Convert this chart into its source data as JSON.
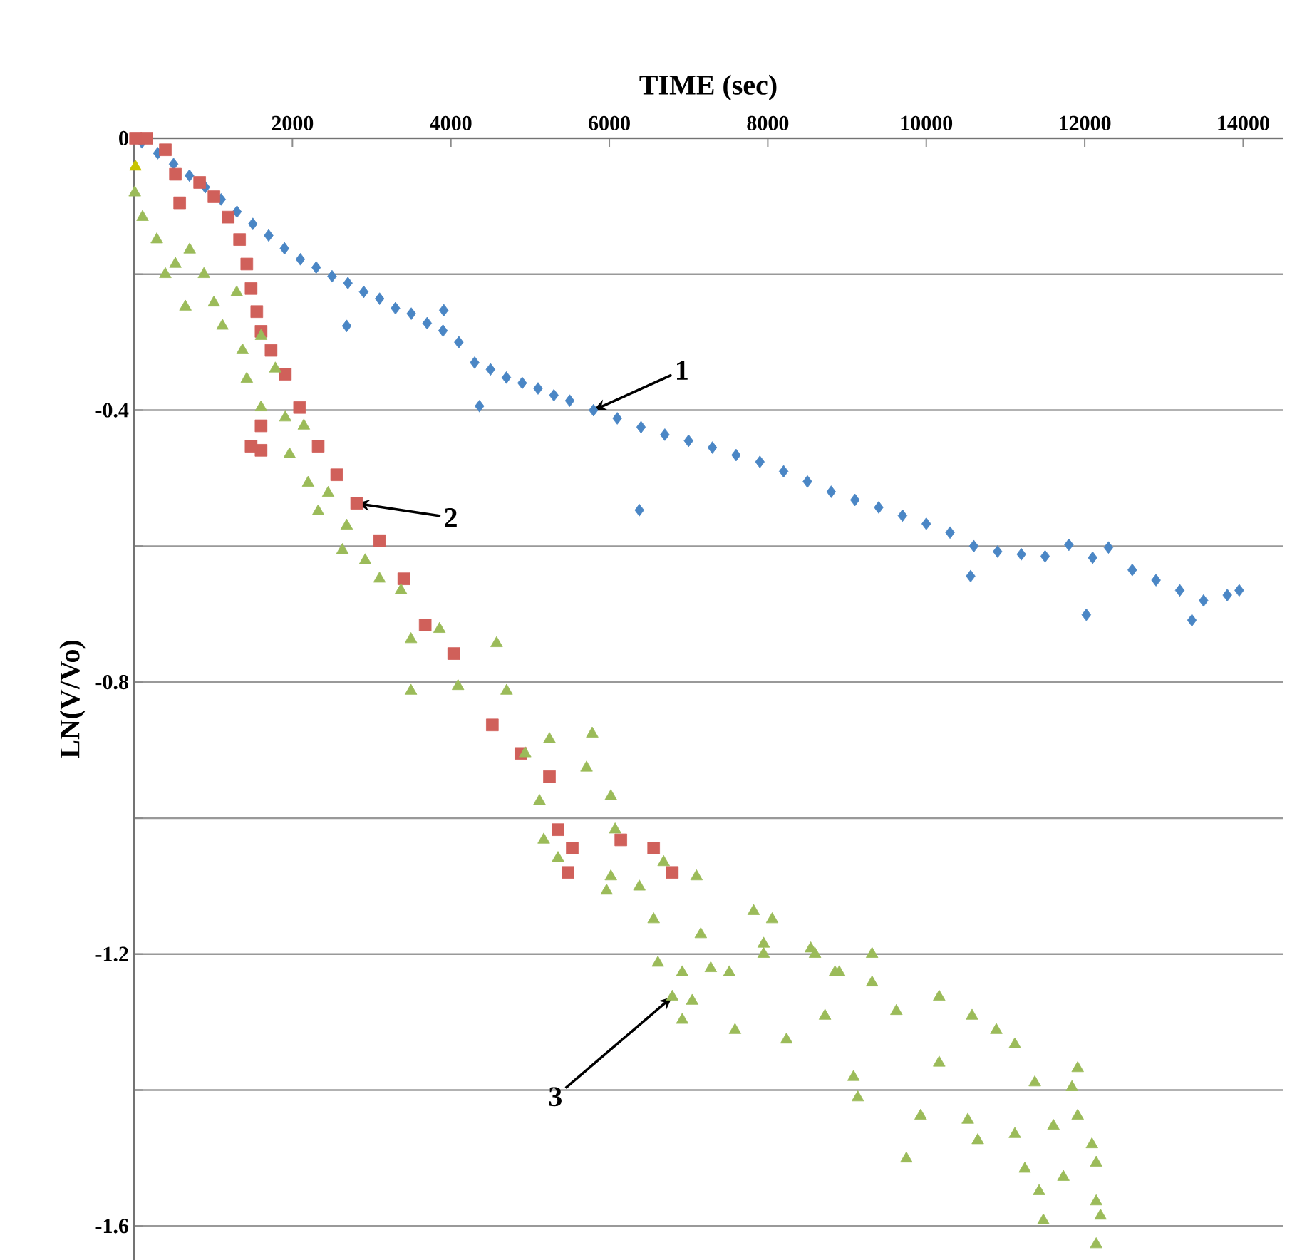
{
  "chart_data": {
    "type": "scatter",
    "xlabel": "TIME (sec)",
    "ylabel": "LN(V/Vo)",
    "xlim": [
      0,
      14500
    ],
    "xticks": [
      2000,
      4000,
      6000,
      8000,
      10000,
      12000,
      14000
    ],
    "ylim": [
      -1.65,
      0
    ],
    "yticks": [
      0,
      {
        "value": -0.2,
        "label": null
      },
      -0.4,
      {
        "value": -0.6,
        "label": null
      },
      -0.8,
      {
        "value": -1.0,
        "label": null
      },
      -1.2,
      {
        "value": -1.4,
        "label": null
      },
      -1.6
    ],
    "grid": "y",
    "series": [
      {
        "color": "#4a86c5",
        "marker": "diamond",
        "x": [
          100,
          300,
          500,
          700,
          900,
          1100,
          1300,
          1500,
          1700,
          1900,
          2100,
          2300,
          2500,
          2700,
          2900,
          3100,
          3300,
          3500,
          3700,
          3900,
          4100,
          4300,
          4500,
          4700,
          4900,
          5100,
          5300,
          5500,
          5800,
          6100,
          6400,
          6700,
          7000,
          7300,
          7600,
          7900,
          8200,
          8500,
          8800,
          9100,
          9400,
          9700,
          10000,
          10300,
          10600,
          10900,
          11200,
          11500,
          11800,
          12100,
          12300,
          12600,
          12900,
          13200,
          13500,
          13800,
          13950,
          2685,
          3910,
          4361,
          6379,
          10560,
          12020,
          13353
        ],
        "values": [
          -0.006,
          -0.022,
          -0.038,
          -0.055,
          -0.072,
          -0.09,
          -0.108,
          -0.126,
          -0.143,
          -0.162,
          -0.178,
          -0.19,
          -0.203,
          -0.213,
          -0.226,
          -0.236,
          -0.25,
          -0.258,
          -0.272,
          -0.283,
          -0.3,
          -0.33,
          -0.34,
          -0.352,
          -0.36,
          -0.368,
          -0.378,
          -0.386,
          -0.4,
          -0.412,
          -0.425,
          -0.436,
          -0.445,
          -0.455,
          -0.466,
          -0.476,
          -0.49,
          -0.505,
          -0.52,
          -0.532,
          -0.543,
          -0.555,
          -0.567,
          -0.58,
          -0.6,
          -0.608,
          -0.612,
          -0.615,
          -0.598,
          -0.617,
          -0.602,
          -0.635,
          -0.65,
          -0.665,
          -0.68,
          -0.672,
          -0.665,
          -0.276,
          -0.253,
          -0.394,
          -0.547,
          -0.644,
          -0.701,
          -0.709
        ]
      },
      {
        "color": "#d0605a",
        "marker": "square",
        "x": [
          20,
          162,
          396,
          523,
          577,
          829,
          1009,
          1189,
          1333,
          1424,
          1478,
          1550,
          1604,
          1730,
          1604,
          1604,
          1478,
          1910,
          2090,
          2325,
          2559,
          2811,
          3099,
          3406,
          3676,
          4036,
          4523,
          4883,
          5244,
          5352,
          5532,
          5478,
          6145,
          6559,
          6794
        ],
        "values": [
          0,
          0,
          -0.017,
          -0.053,
          -0.095,
          -0.065,
          -0.086,
          -0.116,
          -0.149,
          -0.185,
          -0.221,
          -0.255,
          -0.284,
          -0.312,
          -0.423,
          -0.459,
          -0.453,
          -0.347,
          -0.396,
          -0.453,
          -0.495,
          -0.537,
          -0.592,
          -0.648,
          -0.716,
          -0.758,
          -0.863,
          -0.905,
          -0.939,
          -1.017,
          -1.044,
          -1.08,
          -1.032,
          -1.044,
          -1.08
        ]
      },
      {
        "color": "#9bbb59",
        "marker": "triangle",
        "x": [
          10,
          108,
          288,
          523,
          396,
          703,
          883,
          649,
          1009,
          1297,
          1117,
          1370,
          1604,
          1424,
          1784,
          1604,
          1910,
          2144,
          1964,
          2198,
          2451,
          2325,
          2685,
          2631,
          2919,
          3099,
          3370,
          3496,
          3496,
          3856,
          4090,
          4577,
          4703,
          4937,
          5118,
          5172,
          5352,
          5244,
          5784,
          5712,
          6019,
          6073,
          6019,
          5965,
          6379,
          6685,
          7100,
          6559,
          6613,
          6920,
          7154,
          7821,
          8055,
          7514,
          7947,
          8596,
          8902,
          6794,
          7046,
          6920,
          7586,
          7280,
          7947,
          8236,
          8542,
          8848,
          8722,
          9316,
          9316,
          9136,
          9082,
          9623,
          9749,
          9929,
          10163,
          10163,
          10578,
          10524,
          10650,
          10884,
          11118,
          11370,
          11118,
          11244,
          11424,
          11478,
          11731,
          11605,
          11911,
          11839,
          11911,
          12091,
          12145,
          12145,
          12199,
          12145
        ],
        "values": [
          -0.08,
          -0.116,
          -0.149,
          -0.185,
          -0.2,
          -0.164,
          -0.2,
          -0.248,
          -0.242,
          -0.227,
          -0.276,
          -0.312,
          -0.291,
          -0.354,
          -0.339,
          -0.396,
          -0.411,
          -0.423,
          -0.465,
          -0.507,
          -0.522,
          -0.549,
          -0.57,
          -0.606,
          -0.621,
          -0.648,
          -0.665,
          -0.737,
          -0.813,
          -0.722,
          -0.806,
          -0.743,
          -0.813,
          -0.905,
          -0.975,
          -1.032,
          -1.059,
          -0.884,
          -0.876,
          -0.926,
          -0.968,
          -1.017,
          -1.086,
          -1.107,
          -1.101,
          -1.065,
          -1.086,
          -1.149,
          -1.213,
          -1.227,
          -1.171,
          -1.137,
          -1.149,
          -1.227,
          -1.2,
          -1.2,
          -1.227,
          -1.263,
          -1.269,
          -1.297,
          -1.312,
          -1.221,
          -1.185,
          -1.326,
          -1.192,
          -1.227,
          -1.291,
          -1.2,
          -1.242,
          -1.411,
          -1.381,
          -1.284,
          -1.501,
          -1.438,
          -1.263,
          -1.36,
          -1.291,
          -1.444,
          -1.474,
          -1.312,
          -1.333,
          -1.389,
          -1.465,
          -1.516,
          -1.549,
          -1.592,
          -1.528,
          -1.453,
          -1.368,
          -1.396,
          -1.438,
          -1.48,
          -1.507,
          -1.564,
          -1.585,
          -1.627
        ]
      },
      {
        "color": "#c8c400",
        "marker": "triangle",
        "x": [
          18
        ],
        "values": [
          -0.042
        ]
      }
    ],
    "annotations": [
      {
        "text": "1",
        "x": 5800,
        "y": -0.4
      },
      {
        "text": "2",
        "x": 2811,
        "y": -0.537
      },
      {
        "text": "3",
        "x": 6794,
        "y": -1.263
      }
    ]
  }
}
